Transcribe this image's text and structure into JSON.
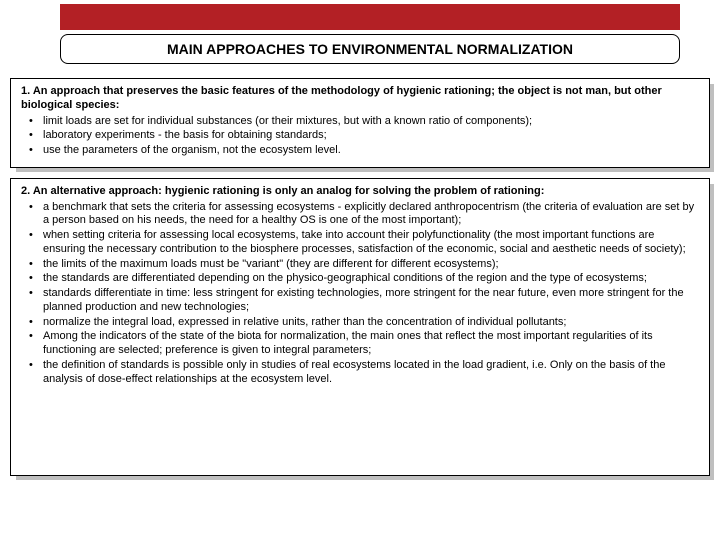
{
  "colors": {
    "accent": "#b32025",
    "border": "#000000",
    "shadow": "#bfbfbf",
    "background": "#ffffff"
  },
  "title": "MAIN APPROACHES TO ENVIRONMENTAL NORMALIZATION",
  "box1": {
    "lead": "1. An approach that preserves the basic features of the methodology of hygienic rationing; the object is not man, but other biological species:",
    "items": [
      "limit loads are set for individual substances (or their mixtures, but with a known ratio of components);",
      "laboratory experiments - the basis for obtaining standards;",
      "use the parameters of the organism, not the ecosystem level."
    ]
  },
  "box2": {
    "lead": "2. An alternative approach: hygienic rationing is only an analog for solving the problem of rationing:",
    "items": [
      "a benchmark that sets the criteria for assessing ecosystems - explicitly declared anthropocentrism (the criteria of evaluation are set by a person based on his needs, the need for a healthy OS is one of the most important);",
      "when setting criteria for assessing local ecosystems, take into account their polyfunctionality (the most important functions are ensuring the necessary contribution to the biosphere processes, satisfaction of the economic, social and aesthetic needs of society);",
      "the limits of the maximum loads must be \"variant\" (they are different for different ecosystems);",
      "the standards are differentiated depending on the physico-geographical conditions of the region and the type of ecosystems;",
      "standards differentiate in time: less stringent for existing technologies, more stringent for the near future, even more stringent for the planned production and new technologies;",
      "normalize the integral load, expressed in relative units, rather than the concentration of individual pollutants;",
      "Among the indicators of the state of the biota for normalization, the main ones that reflect the most important regularities of its functioning are selected; preference is given to integral parameters;",
      "the definition of standards is possible only in studies of real ecosystems located in the load gradient, i.e. Only on the basis of the analysis of dose-effect relationships at the ecosystem level."
    ]
  }
}
